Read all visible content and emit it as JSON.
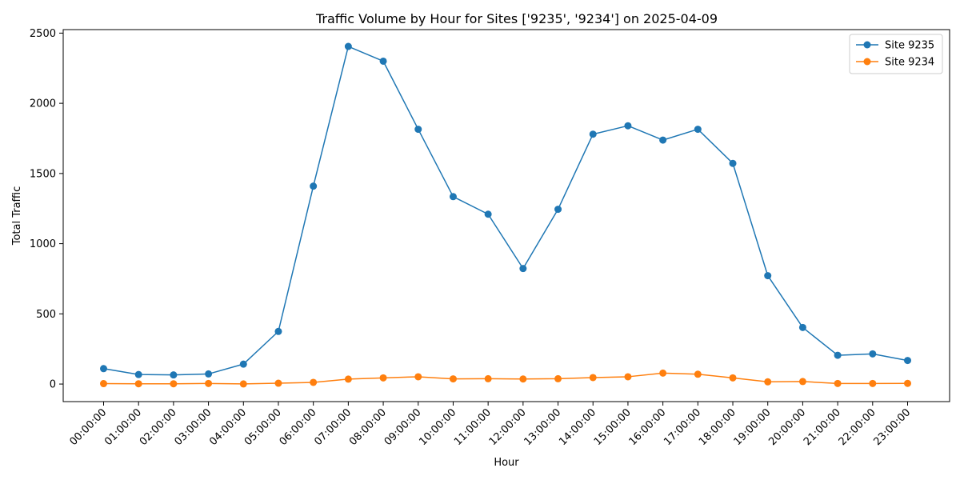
{
  "chart_data": {
    "type": "line",
    "title": "Traffic Volume by Hour for Sites ['9235', '9234'] on 2025-04-09",
    "xlabel": "Hour",
    "ylabel": "Total Traffic",
    "categories": [
      "00:00:00",
      "01:00:00",
      "02:00:00",
      "03:00:00",
      "04:00:00",
      "05:00:00",
      "06:00:00",
      "07:00:00",
      "08:00:00",
      "09:00:00",
      "10:00:00",
      "11:00:00",
      "12:00:00",
      "13:00:00",
      "14:00:00",
      "15:00:00",
      "16:00:00",
      "17:00:00",
      "18:00:00",
      "19:00:00",
      "20:00:00",
      "21:00:00",
      "22:00:00",
      "23:00:00"
    ],
    "ylim": [
      -125,
      2525
    ],
    "yticks": [
      0,
      500,
      1000,
      1500,
      2000,
      2500
    ],
    "grid": false,
    "legend_position": "top-right",
    "series": [
      {
        "name": "Site 9235",
        "color": "#1f77b4",
        "values": [
          110,
          68,
          65,
          72,
          142,
          375,
          1410,
          2405,
          2300,
          1815,
          1335,
          1210,
          823,
          1245,
          1780,
          1840,
          1738,
          1815,
          1572,
          772,
          403,
          205,
          215,
          168
        ]
      },
      {
        "name": "Site 9234",
        "color": "#ff7f0e",
        "values": [
          3,
          2,
          2,
          4,
          1,
          6,
          12,
          35,
          44,
          52,
          37,
          38,
          36,
          38,
          46,
          52,
          78,
          70,
          44,
          16,
          18,
          4,
          4,
          5
        ]
      }
    ]
  }
}
